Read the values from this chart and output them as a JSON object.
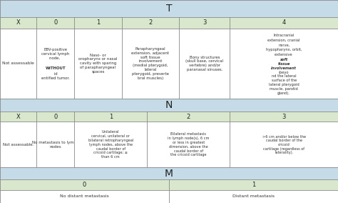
{
  "header_bg": "#c5dce8",
  "subheader_bg": "#d9e8cc",
  "cell_bg": "#ffffff",
  "border_color": "#888888",
  "header_text_color": "#222222",
  "cell_text_color": "#333333",
  "T_header": "T",
  "T_cols": [
    "X",
    "0",
    "1",
    "2",
    "3",
    "4"
  ],
  "N_header": "N",
  "N_cols": [
    "X",
    "0",
    "1",
    "2",
    "3"
  ],
  "M_header": "M",
  "M_cols": [
    "0",
    "1"
  ],
  "fig_width": 4.74,
  "fig_height": 2.84,
  "dpi": 100
}
